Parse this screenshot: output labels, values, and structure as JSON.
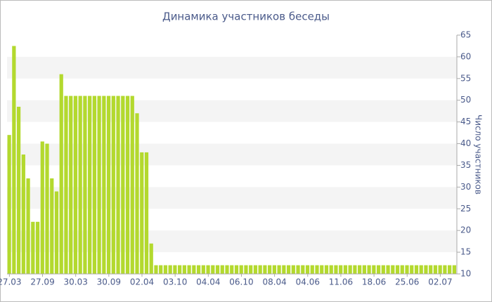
{
  "chart_data": {
    "type": "bar",
    "title": "Динамика участников беседы",
    "y_label": "Число участников",
    "categories": [
      "27.03",
      null,
      null,
      null,
      null,
      null,
      null,
      "27.09",
      null,
      null,
      null,
      null,
      null,
      null,
      "30.03",
      null,
      null,
      null,
      null,
      null,
      null,
      "30.09",
      null,
      null,
      null,
      null,
      null,
      null,
      "02.04",
      null,
      null,
      null,
      null,
      null,
      null,
      "03.10",
      null,
      null,
      null,
      null,
      null,
      null,
      "04.04",
      null,
      null,
      null,
      null,
      null,
      null,
      "06.10",
      null,
      null,
      null,
      null,
      null,
      null,
      "08.04",
      null,
      null,
      null,
      null,
      null,
      null,
      "04.06",
      null,
      null,
      null,
      null,
      null,
      null,
      "11.06",
      null,
      null,
      null,
      null,
      null,
      null,
      "18.06",
      null,
      null,
      null,
      null,
      null,
      null,
      "25.06",
      null,
      null,
      null,
      null,
      null,
      null,
      "02.07",
      null,
      null,
      null
    ],
    "values": [
      42,
      62.5,
      48.5,
      37.5,
      32,
      22,
      22,
      40.5,
      40,
      32,
      29,
      56,
      51,
      51,
      51,
      51,
      51,
      51,
      51,
      51,
      51,
      51,
      51,
      51,
      51,
      51,
      51,
      47,
      38,
      38,
      17,
      12,
      12,
      12,
      12,
      12,
      12,
      12,
      12,
      12,
      12,
      12,
      12,
      12,
      12,
      12,
      12,
      12,
      12,
      12,
      12,
      12,
      12,
      12,
      12,
      12,
      12,
      12,
      12,
      12,
      12,
      12,
      12,
      12,
      12,
      12,
      12,
      12,
      12,
      12,
      12,
      12,
      12,
      12,
      12,
      12,
      12,
      12,
      12,
      12,
      12,
      12,
      12,
      12,
      12,
      12,
      12,
      12,
      12,
      12,
      12,
      12,
      12,
      12,
      12
    ],
    "color": "#b3d92e",
    "ylim": [
      10,
      65
    ],
    "yticks": [
      10,
      15,
      20,
      25,
      30,
      35,
      40,
      45,
      50,
      55,
      60,
      65
    ],
    "grid": true
  }
}
